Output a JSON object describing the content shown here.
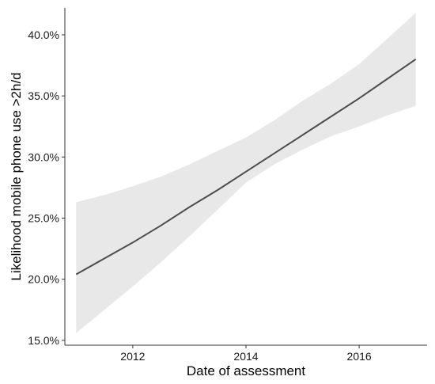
{
  "chart_data": {
    "type": "line",
    "title": "",
    "xlabel": "Date of assessment",
    "ylabel": "Likelihood mobile phone use >2h/d",
    "xlim": [
      2010.8,
      2017.2
    ],
    "ylim": [
      14.6,
      42.2
    ],
    "x_ticks": [
      2012,
      2014,
      2016
    ],
    "x_tick_labels": [
      "2012",
      "2014",
      "2016"
    ],
    "y_ticks": [
      15,
      20,
      25,
      30,
      35,
      40
    ],
    "y_tick_labels": [
      "15.0%",
      "20.0%",
      "25.0%",
      "30.0%",
      "35.0%",
      "40.0%"
    ],
    "grid": false,
    "series": [
      {
        "x": [
          2011,
          2011.5,
          2012,
          2012.5,
          2013,
          2013.5,
          2014,
          2014.5,
          2015,
          2015.5,
          2016,
          2016.5,
          2017
        ],
        "values": [
          20.4,
          21.7,
          23.0,
          24.4,
          25.9,
          27.3,
          28.8,
          30.3,
          31.8,
          33.3,
          34.8,
          36.4,
          38.0
        ],
        "ci_lower": [
          15.6,
          17.5,
          19.4,
          21.4,
          23.5,
          25.7,
          27.9,
          29.4,
          30.6,
          31.7,
          32.5,
          33.4,
          34.2
        ],
        "ci_upper": [
          26.3,
          26.9,
          27.6,
          28.4,
          29.4,
          30.5,
          31.6,
          33.0,
          34.6,
          36.0,
          37.6,
          39.7,
          41.8
        ]
      }
    ],
    "colors": {
      "line": "#4d4d4d",
      "band": "#e8e8e8",
      "axis": "#333333"
    }
  }
}
